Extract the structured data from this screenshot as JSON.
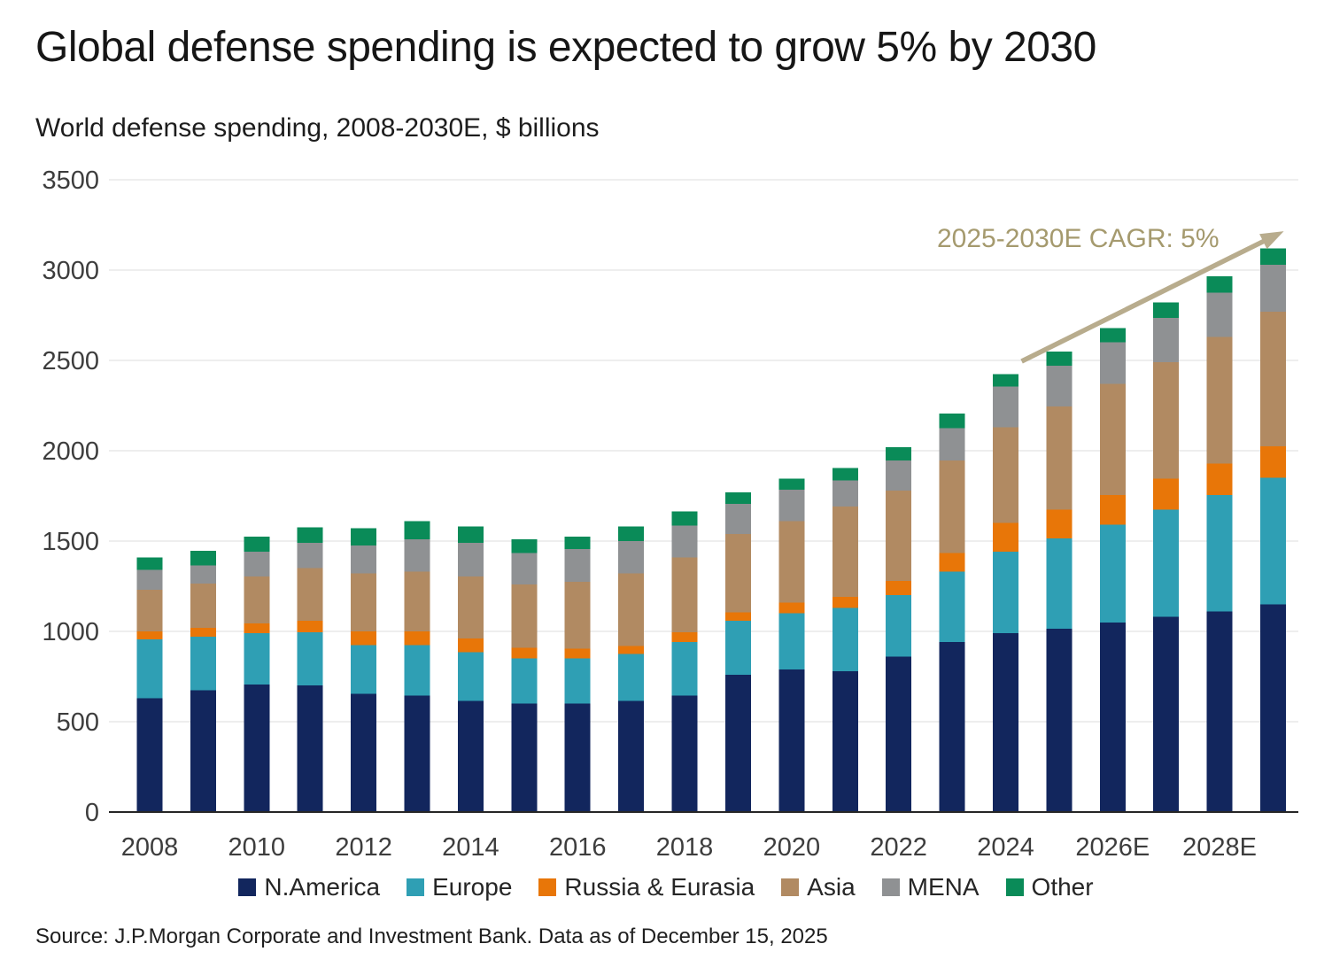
{
  "page": {
    "title": "Global defense spending is expected to grow 5% by 2030",
    "subtitle": "World defense spending, 2008-2030E, $ billions",
    "source": "Source: J.P.Morgan Corporate and Investment Bank. Data as of December 15, 2025"
  },
  "chart_data": {
    "type": "bar",
    "stacked": true,
    "title": "World defense spending, 2008-2030E, $ billions",
    "categories": [
      "2008",
      "2009",
      "2010",
      "2011",
      "2012",
      "2013",
      "2014",
      "2015",
      "2016",
      "2017",
      "2018",
      "2019",
      "2020",
      "2021",
      "2022",
      "2023",
      "2024",
      "2025",
      "2026",
      "2027",
      "2028",
      "2029"
    ],
    "x_tick_labels": [
      "2008",
      "2010",
      "2012",
      "2014",
      "2016",
      "2018",
      "2020",
      "2022",
      "2024",
      "2026E",
      "2028E"
    ],
    "x_tick_indices": [
      0,
      2,
      4,
      6,
      8,
      10,
      12,
      14,
      16,
      18,
      20
    ],
    "ylim": [
      0,
      3500
    ],
    "y_ticks": [
      0,
      500,
      1000,
      1500,
      2000,
      2500,
      3000,
      3500
    ],
    "grid": true,
    "legend_position": "bottom",
    "series": [
      {
        "name": "N.America",
        "color": "#12265d",
        "values": [
          630,
          675,
          705,
          700,
          655,
          645,
          615,
          600,
          600,
          615,
          645,
          760,
          790,
          780,
          860,
          940,
          990,
          1015,
          1050,
          1080,
          1110,
          1150
        ]
      },
      {
        "name": "Europe",
        "color": "#2f9fb4",
        "values": [
          325,
          295,
          285,
          295,
          270,
          280,
          270,
          250,
          250,
          260,
          295,
          300,
          310,
          350,
          340,
          390,
          450,
          500,
          540,
          595,
          645,
          700
        ]
      },
      {
        "name": "Russia & Eurasia",
        "color": "#e87608",
        "values": [
          45,
          50,
          55,
          65,
          75,
          75,
          75,
          60,
          55,
          45,
          55,
          45,
          60,
          60,
          80,
          105,
          160,
          160,
          165,
          170,
          175,
          175
        ]
      },
      {
        "name": "Asia",
        "color": "#b18a62",
        "values": [
          230,
          245,
          260,
          290,
          320,
          330,
          345,
          350,
          370,
          400,
          415,
          435,
          450,
          500,
          500,
          510,
          530,
          570,
          615,
          645,
          700,
          745
        ]
      },
      {
        "name": "MENA",
        "color": "#8f9193",
        "values": [
          110,
          100,
          135,
          140,
          155,
          180,
          185,
          175,
          180,
          180,
          175,
          165,
          175,
          145,
          165,
          180,
          225,
          225,
          230,
          245,
          245,
          260
        ]
      },
      {
        "name": "Other",
        "color": "#0a8b58",
        "values": [
          70,
          80,
          85,
          85,
          95,
          100,
          90,
          75,
          70,
          80,
          80,
          65,
          60,
          70,
          75,
          80,
          70,
          80,
          80,
          85,
          90,
          90
        ]
      }
    ],
    "annotation": {
      "text": "2025-2030E CAGR: 5%",
      "text_color": "#a59a6e",
      "arrow_color": "#b8ac8d",
      "arrow": {
        "from_category_index": 16.3,
        "from_value": 2495,
        "to_category_index": 21.2,
        "to_value": 3215
      }
    },
    "style": {
      "gridline_color": "#e8e8e8",
      "axis_line_color": "#262626",
      "tick_label_color": "#3d3d3d"
    }
  }
}
